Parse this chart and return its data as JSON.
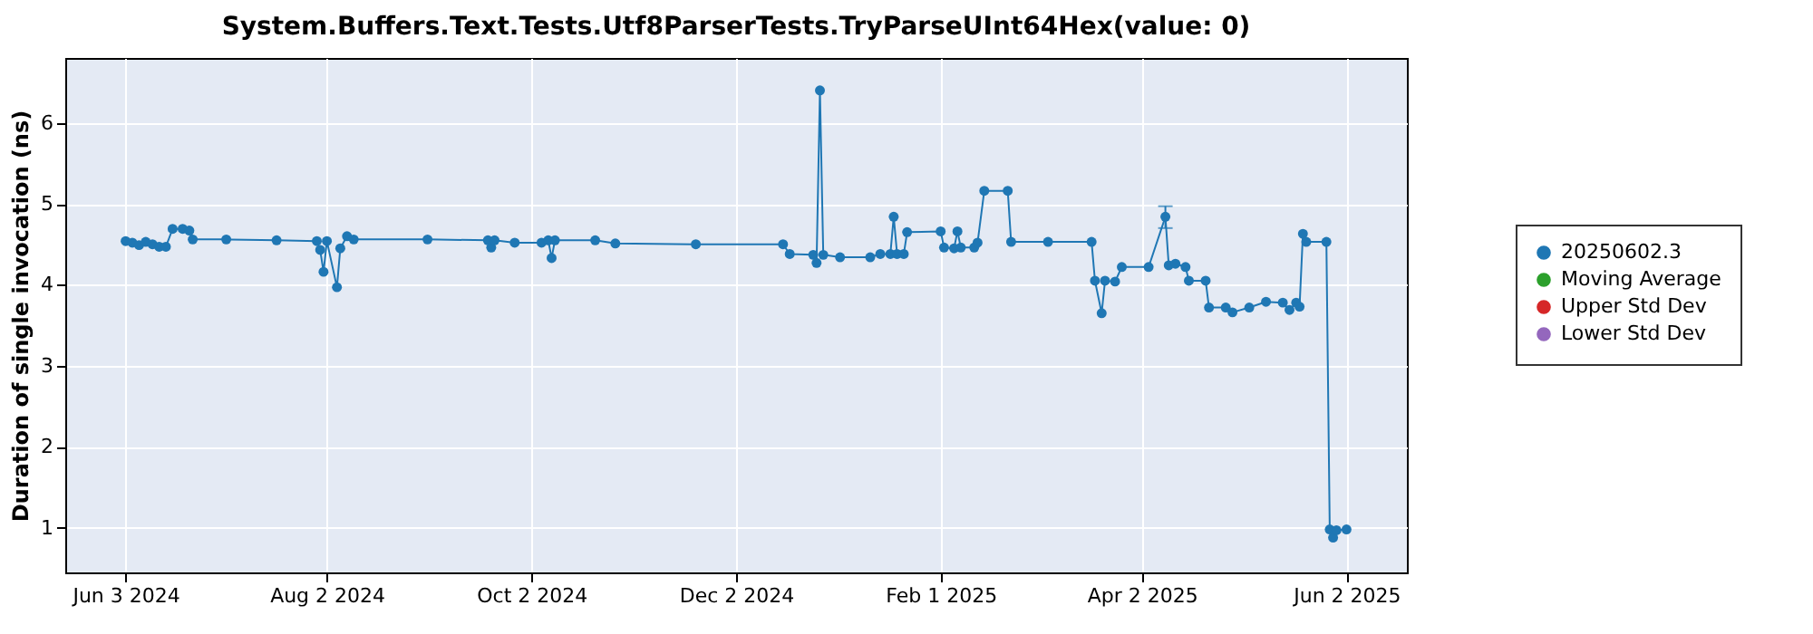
{
  "chart_data": {
    "type": "line",
    "title": "System.Buffers.Text.Tests.Utf8ParserTests.TryParseUInt64Hex(value: 0)",
    "ylabel": "Duration of single invocation (ns)",
    "x": [
      "2024-06-03",
      "2024-06-05",
      "2024-06-07",
      "2024-06-09",
      "2024-06-11",
      "2024-06-13",
      "2024-06-15",
      "2024-06-17",
      "2024-06-20",
      "2024-06-22",
      "2024-06-23",
      "2024-07-03",
      "2024-07-18",
      "2024-07-30",
      "2024-07-31",
      "2024-08-01",
      "2024-08-02",
      "2024-08-05",
      "2024-08-06",
      "2024-08-08",
      "2024-08-10",
      "2024-09-01",
      "2024-09-19",
      "2024-09-20",
      "2024-09-21",
      "2024-09-27",
      "2024-10-05",
      "2024-10-07",
      "2024-10-08",
      "2024-10-09",
      "2024-10-21",
      "2024-10-27",
      "2024-11-20",
      "2024-12-16",
      "2024-12-18",
      "2024-12-25",
      "2024-12-26",
      "2024-12-27",
      "2024-12-28",
      "2025-01-02",
      "2025-01-11",
      "2025-01-14",
      "2025-01-17",
      "2025-01-18",
      "2025-01-19",
      "2025-01-21",
      "2025-01-22",
      "2025-02-01",
      "2025-02-02",
      "2025-02-05",
      "2025-02-06",
      "2025-02-07",
      "2025-02-11",
      "2025-02-12",
      "2025-02-14",
      "2025-02-21",
      "2025-02-22",
      "2025-03-05",
      "2025-03-18",
      "2025-03-19",
      "2025-03-21",
      "2025-03-22",
      "2025-03-25",
      "2025-03-27",
      "2025-04-04",
      "2025-04-09",
      "2025-04-10",
      "2025-04-12",
      "2025-04-15",
      "2025-04-16",
      "2025-04-21",
      "2025-04-22",
      "2025-04-27",
      "2025-04-29",
      "2025-05-04",
      "2025-05-09",
      "2025-05-14",
      "2025-05-16",
      "2025-05-18",
      "2025-05-19",
      "2025-05-20",
      "2025-05-21",
      "2025-05-27",
      "2025-05-28",
      "2025-05-29",
      "2025-05-30",
      "2025-06-02"
    ],
    "series": [
      {
        "name": "20250602.3",
        "color": "#1f77b4",
        "values": [
          4.54,
          4.52,
          4.49,
          4.53,
          4.5,
          4.47,
          4.47,
          4.69,
          4.69,
          4.67,
          4.56,
          4.56,
          4.55,
          4.54,
          4.43,
          4.16,
          4.54,
          3.97,
          4.45,
          4.6,
          4.56,
          4.56,
          4.55,
          4.46,
          4.55,
          4.52,
          4.52,
          4.55,
          4.33,
          4.55,
          4.55,
          4.51,
          4.5,
          4.5,
          4.38,
          4.37,
          4.27,
          6.4,
          4.37,
          4.34,
          4.34,
          4.38,
          4.38,
          4.84,
          4.38,
          4.38,
          4.65,
          4.66,
          4.46,
          4.45,
          4.66,
          4.46,
          4.46,
          4.52,
          5.16,
          5.16,
          4.53,
          4.53,
          4.53,
          4.05,
          3.65,
          4.05,
          4.04,
          4.22,
          4.22,
          4.84,
          4.24,
          4.26,
          4.22,
          4.05,
          4.05,
          3.72,
          3.72,
          3.66,
          3.72,
          3.79,
          3.78,
          3.69,
          3.78,
          3.73,
          4.63,
          4.53,
          4.53,
          0.98,
          0.88,
          0.97,
          0.98
        ],
        "errors": [
          null,
          null,
          null,
          null,
          null,
          null,
          null,
          null,
          null,
          null,
          null,
          null,
          null,
          null,
          null,
          null,
          null,
          null,
          null,
          null,
          null,
          null,
          null,
          null,
          null,
          null,
          null,
          null,
          null,
          null,
          null,
          null,
          null,
          null,
          null,
          null,
          null,
          null,
          null,
          null,
          null,
          null,
          null,
          null,
          null,
          null,
          null,
          null,
          null,
          null,
          null,
          null,
          null,
          null,
          null,
          null,
          null,
          null,
          null,
          null,
          null,
          null,
          null,
          null,
          null,
          [
            4.7,
            4.97
          ],
          null,
          null,
          null,
          null,
          null,
          null,
          null,
          null,
          null,
          null,
          null,
          null,
          null,
          null,
          null,
          null,
          null,
          null,
          null,
          null,
          null
        ]
      },
      {
        "name": "Moving Average",
        "color": "#2ca02c",
        "values": [
          null,
          null,
          null,
          null,
          null,
          null,
          null,
          null,
          null,
          null,
          null,
          null,
          null,
          null,
          null,
          null,
          null,
          null,
          null,
          null,
          null,
          null,
          null,
          null,
          null,
          null,
          null,
          null,
          null,
          null,
          null,
          null,
          null,
          null,
          null,
          null,
          null,
          null,
          null,
          null,
          null,
          null,
          null,
          null,
          null,
          null,
          null,
          null,
          null,
          null,
          null,
          null,
          null,
          null,
          null,
          null,
          null,
          null,
          null,
          null,
          null,
          null,
          null,
          null,
          null,
          null,
          null,
          null,
          null,
          null,
          null,
          null,
          null,
          null,
          null,
          null,
          null,
          null,
          null,
          null,
          null,
          null,
          null,
          null,
          null,
          null,
          null
        ]
      },
      {
        "name": "Upper Std Dev",
        "color": "#d62728",
        "values": [
          null,
          null,
          null,
          null,
          null,
          null,
          null,
          null,
          null,
          null,
          null,
          null,
          null,
          null,
          null,
          null,
          null,
          null,
          null,
          null,
          null,
          null,
          null,
          null,
          null,
          null,
          null,
          null,
          null,
          null,
          null,
          null,
          null,
          null,
          null,
          null,
          null,
          null,
          null,
          null,
          null,
          null,
          null,
          null,
          null,
          null,
          null,
          null,
          null,
          null,
          null,
          null,
          null,
          null,
          null,
          null,
          null,
          null,
          null,
          null,
          null,
          null,
          null,
          null,
          null,
          null,
          null,
          null,
          null,
          null,
          null,
          null,
          null,
          null,
          null,
          null,
          null,
          null,
          null,
          null,
          null,
          null,
          null,
          null,
          null,
          null,
          null
        ]
      },
      {
        "name": "Lower Std Dev",
        "color": "#9467bd",
        "values": [
          null,
          null,
          null,
          null,
          null,
          null,
          null,
          null,
          null,
          null,
          null,
          null,
          null,
          null,
          null,
          null,
          null,
          null,
          null,
          null,
          null,
          null,
          null,
          null,
          null,
          null,
          null,
          null,
          null,
          null,
          null,
          null,
          null,
          null,
          null,
          null,
          null,
          null,
          null,
          null,
          null,
          null,
          null,
          null,
          null,
          null,
          null,
          null,
          null,
          null,
          null,
          null,
          null,
          null,
          null,
          null,
          null,
          null,
          null,
          null,
          null,
          null,
          null,
          null,
          null,
          null,
          null,
          null,
          null,
          null,
          null,
          null,
          null,
          null,
          null,
          null,
          null,
          null,
          null,
          null,
          null,
          null,
          null,
          null,
          null,
          null,
          null
        ]
      }
    ],
    "xlim": [
      "2024-05-16",
      "2025-06-20"
    ],
    "xticks": [
      {
        "value": "2024-06-03",
        "label": "Jun 3 2024"
      },
      {
        "value": "2024-08-02",
        "label": "Aug 2 2024"
      },
      {
        "value": "2024-10-02",
        "label": "Oct 2 2024"
      },
      {
        "value": "2024-12-02",
        "label": "Dec 2 2024"
      },
      {
        "value": "2025-02-01",
        "label": "Feb 1 2025"
      },
      {
        "value": "2025-04-02",
        "label": "Apr 2 2025"
      },
      {
        "value": "2025-06-02",
        "label": "Jun 2 2025"
      }
    ],
    "ylim": [
      0.45,
      6.8
    ],
    "yticks": [
      1,
      2,
      3,
      4,
      5,
      6
    ],
    "grid": true,
    "legend": "right",
    "marker": "circle",
    "line_style": "solid"
  }
}
